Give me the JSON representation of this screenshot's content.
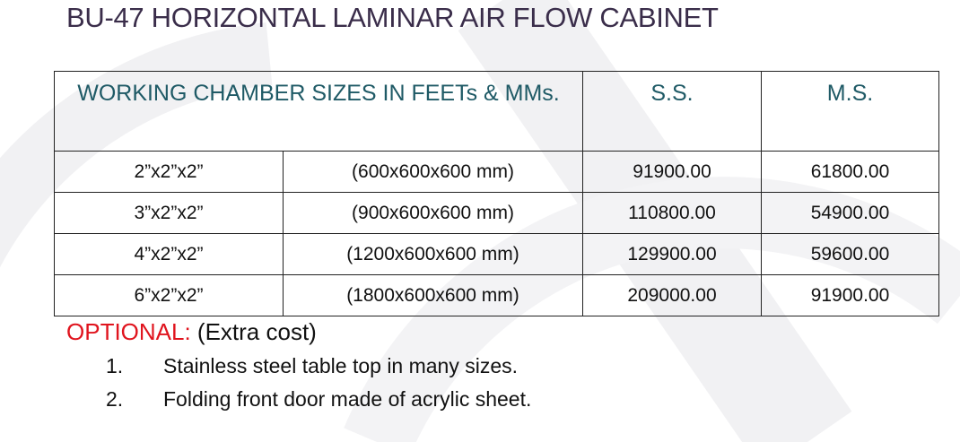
{
  "title": "BU-47 HORIZONTAL LAMINAR AIR FLOW CABINET",
  "table": {
    "headers": [
      "WORKING CHAMBER SIZES IN FEETs & MMs.",
      "S.S.",
      "M.S."
    ],
    "rows": [
      {
        "feet": "2”x2”x2”",
        "mm": "(600x600x600 mm)",
        "ss": "91900.00",
        "ms": "61800.00"
      },
      {
        "feet": "3”x2”x2”",
        "mm": "(900x600x600 mm)",
        "ss": "110800.00",
        "ms": "54900.00"
      },
      {
        "feet": "4”x2”x2”",
        "mm": "(1200x600x600 mm)",
        "ss": "129900.00",
        "ms": "59600.00"
      },
      {
        "feet": "6”x2”x2”",
        "mm": "(1800x600x600 mm)",
        "ss": "209000.00",
        "ms": "91900.00"
      }
    ]
  },
  "optional": {
    "label": "OPTIONAL:",
    "note": " (Extra cost)",
    "items": [
      {
        "num": "1.",
        "text": "Stainless steel table top in many sizes."
      },
      {
        "num": "2.",
        "text": "Folding front door made of acrylic sheet."
      }
    ]
  },
  "colors": {
    "title": "#3a2d4a",
    "header": "#1f5a66",
    "optional": "#e0141e"
  }
}
